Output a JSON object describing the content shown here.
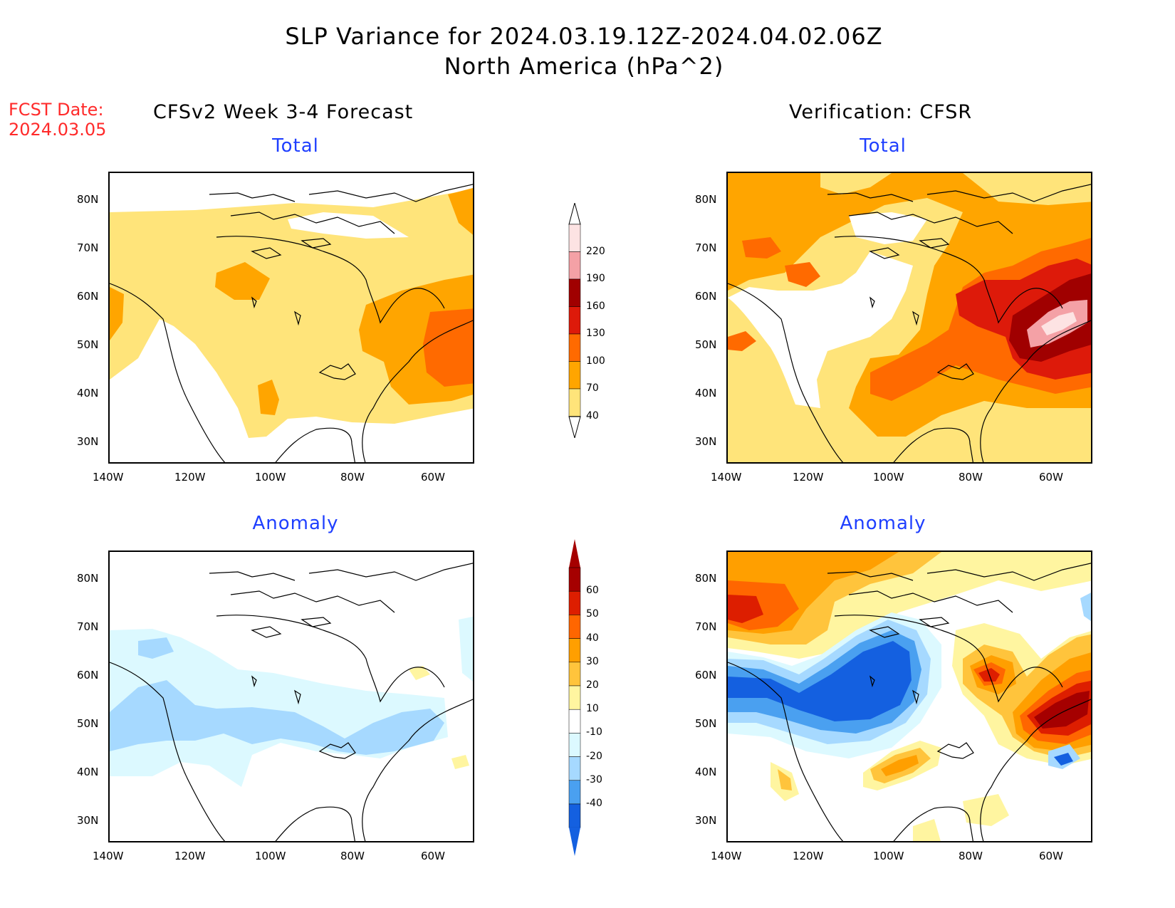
{
  "header": {
    "title_line1": "SLP Variance for 2024.03.19.12Z-2024.04.02.06Z",
    "title_line2": "North America (hPa^2)"
  },
  "fcst": {
    "label": "FCST Date:",
    "date": "2024.03.05"
  },
  "columns": {
    "left": "CFSv2 Week 3-4 Forecast",
    "right": "Verification: CFSR"
  },
  "panels": {
    "top_left_title": "Total",
    "top_right_title": "Total",
    "bottom_left_title": "Anomaly",
    "bottom_right_title": "Anomaly"
  },
  "axes": {
    "lat_labels": [
      "80N",
      "70N",
      "60N",
      "50N",
      "40N",
      "30N"
    ],
    "lon_labels": [
      "140W",
      "120W",
      "100W",
      "80W",
      "60W"
    ]
  },
  "colorbars": {
    "total": {
      "levels": [
        "220",
        "190",
        "160",
        "130",
        "100",
        "70",
        "40"
      ],
      "colors": [
        "#fde3e3",
        "#f4a1a6",
        "#a00000",
        "#dd1a0a",
        "#ff6a00",
        "#ffa500",
        "#ffe47a"
      ]
    },
    "anomaly": {
      "levels": [
        "60",
        "50",
        "40",
        "30",
        "20",
        "10",
        "-10",
        "-20",
        "-30",
        "-40"
      ],
      "colors": [
        "#a50000",
        "#dd1e00",
        "#ff6600",
        "#ff9f00",
        "#ffc43c",
        "#fff5a0",
        "#ffffff",
        "#dcf9ff",
        "#a6d9ff",
        "#4aa0f0",
        "#1460e0"
      ]
    }
  },
  "palette": {
    "total_yellow": "#ffe47a",
    "total_orange": "#ffa500",
    "total_dark_orange": "#ff6a00",
    "total_red": "#dd1a0a",
    "total_dark_red": "#a00000",
    "total_pink": "#f4a1a6",
    "total_light_pink": "#fde3e3",
    "anom_light_blue": "#dcf9ff",
    "anom_blue": "#a6d9ff",
    "anom_mid_blue": "#4aa0f0",
    "anom_dark_blue": "#1460e0",
    "anom_light_yellow": "#fff5a0",
    "anom_yellow": "#ffc43c",
    "anom_orange": "#ff9f00",
    "anom_dark_orange": "#ff6600",
    "anom_red": "#dd1e00",
    "anom_dark_red": "#a50000"
  }
}
